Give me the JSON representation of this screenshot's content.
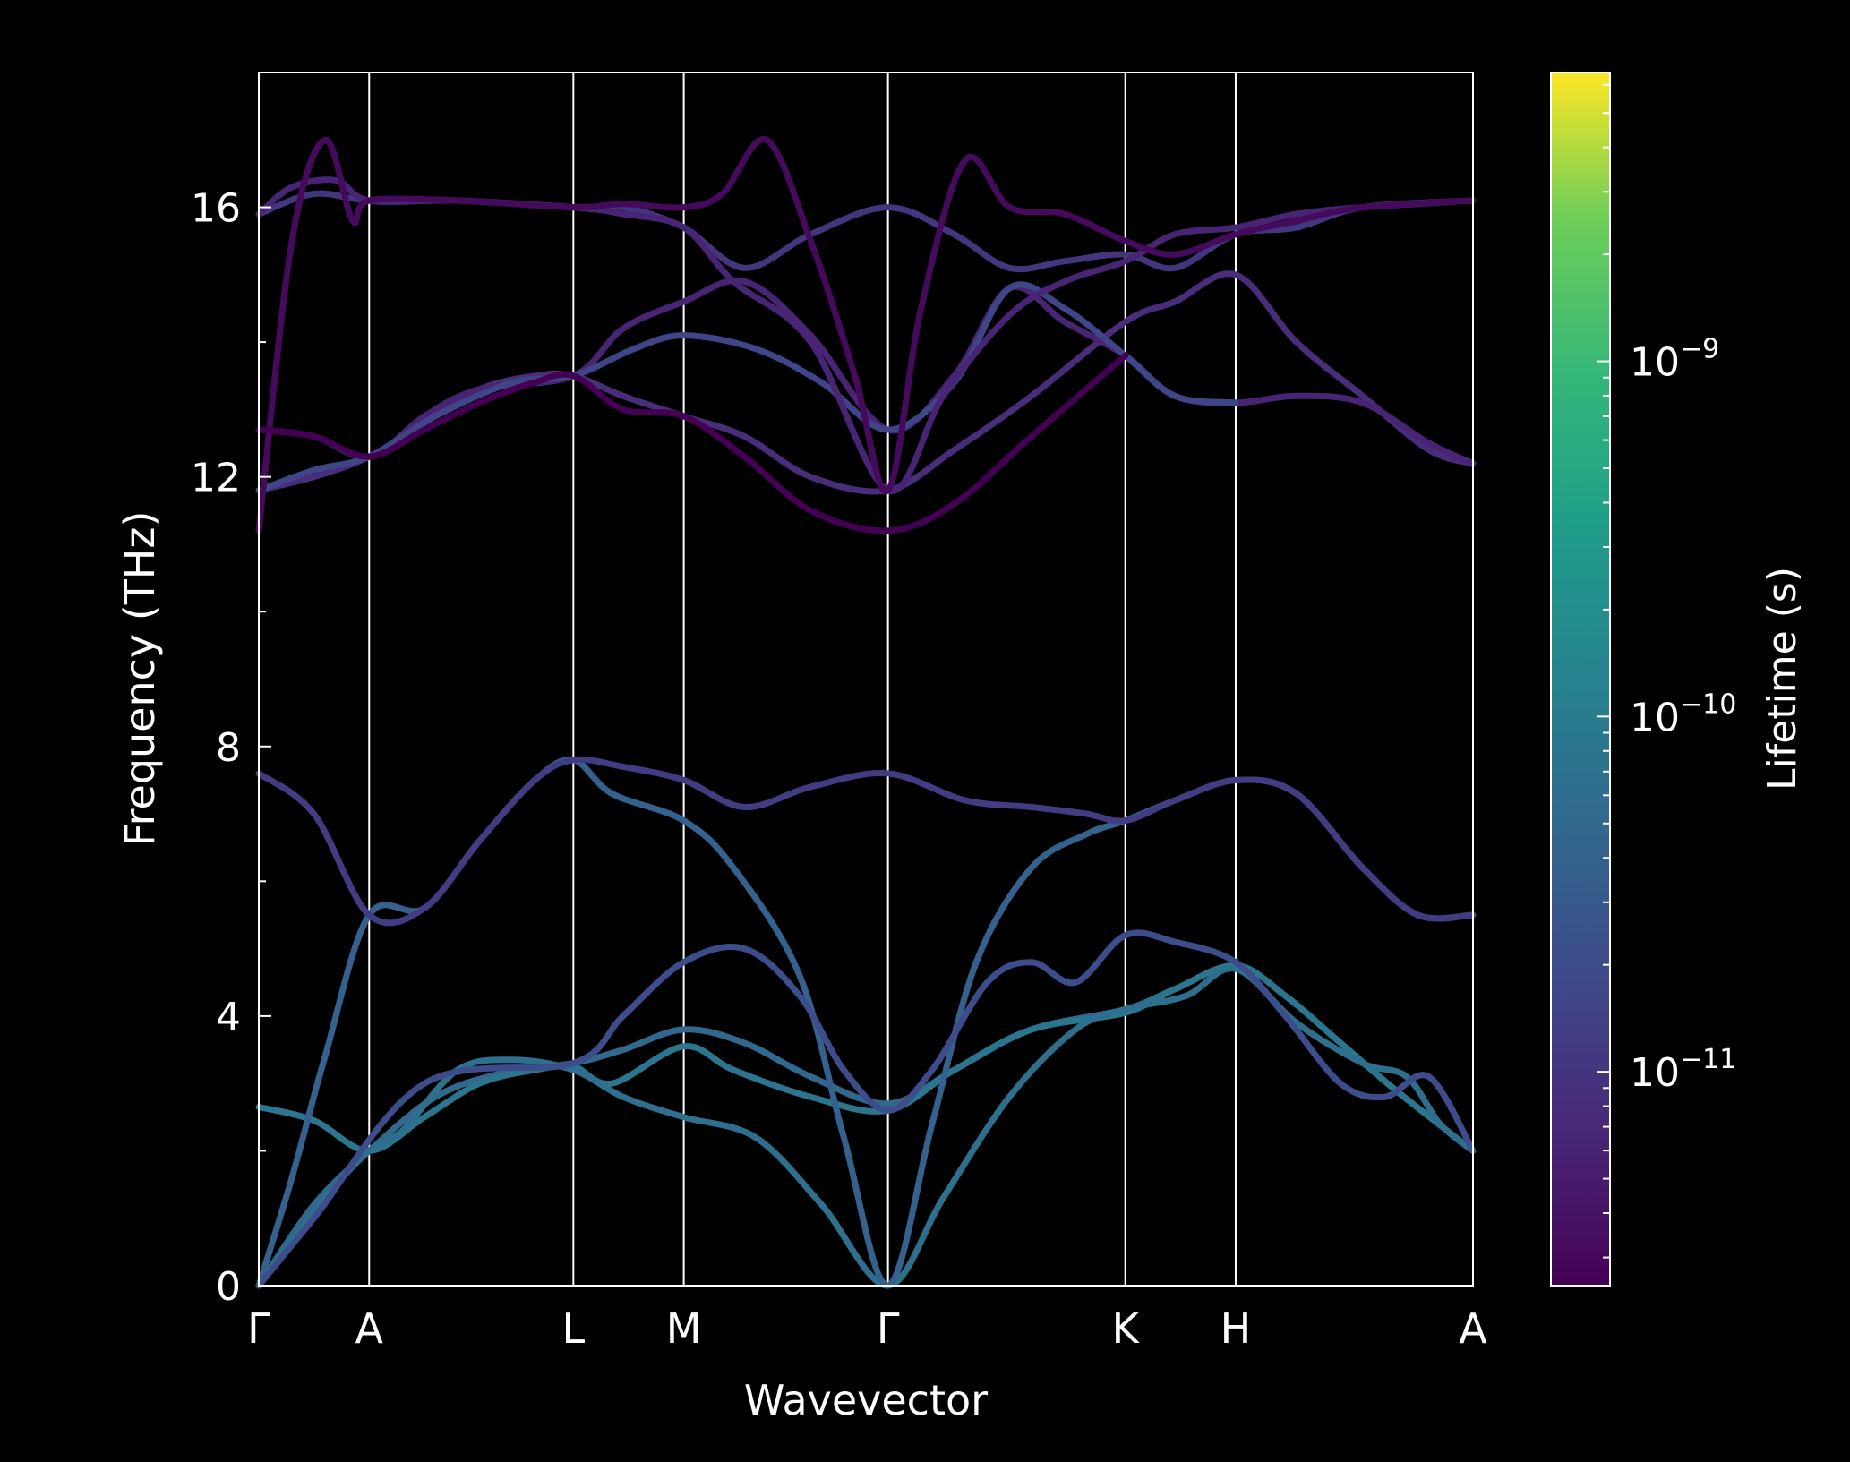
{
  "chart_data": {
    "type": "line",
    "title": "",
    "xlabel": "Wavevector",
    "ylabel": "Frequency (THz)",
    "ylim": [
      0,
      18
    ],
    "yticks": [
      0,
      4,
      8,
      12,
      16
    ],
    "ytick_labels": [
      "0",
      "4",
      "8",
      "12",
      "16"
    ],
    "xlim": [
      0,
      11
    ],
    "high_symmetry_points": [
      {
        "label": "Γ",
        "x": 0
      },
      {
        "label": "A",
        "x": 1
      },
      {
        "label": "L",
        "x": 2.85
      },
      {
        "label": "M",
        "x": 3.85
      },
      {
        "label": "Γ",
        "x": 5.7
      },
      {
        "label": "K",
        "x": 7.85
      },
      {
        "label": "H",
        "x": 8.85
      },
      {
        "label": "A",
        "x": 11
      }
    ],
    "grid": false,
    "colorbar": {
      "label": "Lifetime (s)",
      "scale": "log",
      "colormap": "viridis",
      "range": [
        2.5e-12,
        6.5e-09
      ],
      "ticks": [
        {
          "value": 1e-11,
          "label": "10",
          "exponent": "−11"
        },
        {
          "value": 1e-10,
          "label": "10",
          "exponent": "−10"
        },
        {
          "value": 1e-09,
          "label": "10",
          "exponent": "−9"
        }
      ]
    },
    "series": [
      {
        "lifetime_exp": -10.3,
        "points": [
          [
            0,
            0
          ],
          [
            0.5,
            1.2
          ],
          [
            1,
            2.0
          ],
          [
            1.6,
            2.8
          ],
          [
            2.2,
            3.15
          ],
          [
            2.85,
            3.3
          ],
          [
            3.3,
            3.5
          ],
          [
            3.85,
            3.8
          ],
          [
            4.4,
            3.6
          ],
          [
            5.0,
            3.1
          ],
          [
            5.7,
            2.7
          ],
          [
            6.3,
            3.2
          ],
          [
            7.0,
            3.8
          ],
          [
            7.85,
            4.1
          ],
          [
            8.3,
            4.4
          ],
          [
            8.85,
            4.75
          ],
          [
            9.3,
            4.3
          ],
          [
            9.8,
            3.6
          ],
          [
            10.3,
            2.9
          ],
          [
            11,
            2.0
          ]
        ]
      },
      {
        "lifetime_exp": -10.1,
        "points": [
          [
            0,
            2.65
          ],
          [
            0.5,
            2.45
          ],
          [
            1,
            2.0
          ],
          [
            1.5,
            2.5
          ],
          [
            2.0,
            3.0
          ],
          [
            2.5,
            3.2
          ],
          [
            2.85,
            3.25
          ],
          [
            3.2,
            3.0
          ],
          [
            3.85,
            3.55
          ],
          [
            4.3,
            3.2
          ],
          [
            5.0,
            2.8
          ],
          [
            5.7,
            2.6
          ],
          [
            6.3,
            3.2
          ],
          [
            7.0,
            3.8
          ],
          [
            7.85,
            4.05
          ],
          [
            8.3,
            4.4
          ],
          [
            8.85,
            4.75
          ],
          [
            9.3,
            4.3
          ],
          [
            9.8,
            3.6
          ],
          [
            10.3,
            2.9
          ],
          [
            11,
            2.0
          ]
        ]
      },
      {
        "lifetime_exp": -10.2,
        "points": [
          [
            0,
            0
          ],
          [
            0.6,
            1.3
          ],
          [
            1,
            2.0
          ],
          [
            1.3,
            2.3
          ],
          [
            1.8,
            3.2
          ],
          [
            2.3,
            3.35
          ],
          [
            2.85,
            3.2
          ],
          [
            3.3,
            2.8
          ],
          [
            3.85,
            2.5
          ],
          [
            4.5,
            2.2
          ],
          [
            5.1,
            1.2
          ],
          [
            5.7,
            0
          ],
          [
            6.2,
            1.3
          ],
          [
            6.8,
            2.8
          ],
          [
            7.4,
            3.8
          ],
          [
            7.85,
            4.1
          ],
          [
            8.4,
            4.3
          ],
          [
            8.85,
            4.7
          ],
          [
            9.4,
            3.9
          ],
          [
            10.0,
            3.3
          ],
          [
            10.4,
            3.1
          ],
          [
            10.7,
            2.4
          ],
          [
            11,
            2.0
          ]
        ]
      },
      {
        "lifetime_exp": -10.4,
        "points": [
          [
            0,
            0
          ],
          [
            0.3,
            1.6
          ],
          [
            0.6,
            3.4
          ],
          [
            1,
            5.5
          ],
          [
            1.5,
            5.6
          ],
          [
            2.0,
            6.6
          ],
          [
            2.5,
            7.5
          ],
          [
            2.85,
            7.8
          ],
          [
            3.2,
            7.3
          ],
          [
            3.85,
            6.9
          ],
          [
            4.3,
            6.2
          ],
          [
            4.9,
            4.6
          ],
          [
            5.3,
            2.2
          ],
          [
            5.7,
            0
          ],
          [
            6.1,
            2.4
          ],
          [
            6.5,
            4.8
          ],
          [
            7.0,
            6.2
          ],
          [
            7.5,
            6.7
          ],
          [
            7.85,
            6.9
          ],
          [
            8.3,
            7.2
          ],
          [
            8.85,
            7.5
          ],
          [
            9.4,
            7.3
          ],
          [
            10.0,
            6.2
          ],
          [
            10.5,
            5.5
          ],
          [
            11,
            5.5
          ]
        ]
      },
      {
        "lifetime_exp": -10.7,
        "points": [
          [
            0,
            0
          ],
          [
            0.5,
            1.0
          ],
          [
            1.5,
            3.0
          ],
          [
            2.85,
            3.3
          ],
          [
            3.3,
            4.0
          ],
          [
            3.85,
            4.8
          ],
          [
            4.4,
            5.0
          ],
          [
            4.9,
            4.3
          ],
          [
            5.3,
            3.2
          ],
          [
            5.7,
            2.6
          ],
          [
            6.1,
            3.2
          ],
          [
            6.6,
            4.5
          ],
          [
            7.0,
            4.8
          ],
          [
            7.4,
            4.5
          ],
          [
            7.85,
            5.2
          ],
          [
            8.3,
            5.1
          ],
          [
            8.85,
            4.8
          ],
          [
            9.3,
            4.0
          ],
          [
            9.8,
            3.0
          ],
          [
            10.2,
            2.8
          ],
          [
            10.6,
            3.1
          ],
          [
            11,
            2.0
          ]
        ]
      },
      {
        "lifetime_exp": -10.9,
        "points": [
          [
            0,
            7.6
          ],
          [
            0.5,
            7.0
          ],
          [
            1,
            5.5
          ],
          [
            1.5,
            5.6
          ],
          [
            2.0,
            6.6
          ],
          [
            2.5,
            7.5
          ],
          [
            2.85,
            7.8
          ],
          [
            3.3,
            7.7
          ],
          [
            3.85,
            7.5
          ],
          [
            4.4,
            7.1
          ],
          [
            5.0,
            7.4
          ],
          [
            5.7,
            7.6
          ],
          [
            6.4,
            7.2
          ],
          [
            7.0,
            7.1
          ],
          [
            7.5,
            7.0
          ],
          [
            7.85,
            6.9
          ],
          [
            8.3,
            7.2
          ],
          [
            8.85,
            7.5
          ],
          [
            9.4,
            7.3
          ],
          [
            10.0,
            6.2
          ],
          [
            10.5,
            5.5
          ],
          [
            11,
            5.5
          ]
        ]
      },
      {
        "lifetime_exp": -11.1,
        "points": [
          [
            0,
            11.8
          ],
          [
            0.5,
            12.0
          ],
          [
            1,
            12.3
          ],
          [
            1.5,
            12.8
          ],
          [
            2.0,
            13.3
          ],
          [
            2.5,
            13.5
          ],
          [
            2.85,
            13.5
          ],
          [
            3.3,
            13.2
          ],
          [
            3.85,
            12.9
          ],
          [
            4.4,
            12.6
          ],
          [
            5.0,
            12.0
          ],
          [
            5.7,
            11.8
          ],
          [
            6.3,
            12.4
          ],
          [
            7.0,
            13.2
          ],
          [
            7.85,
            14.3
          ],
          [
            8.3,
            14.6
          ],
          [
            8.85,
            15.0
          ],
          [
            9.4,
            14.0
          ],
          [
            10.0,
            13.2
          ],
          [
            10.6,
            12.4
          ],
          [
            11,
            12.2
          ]
        ]
      },
      {
        "lifetime_exp": -11.2,
        "points": [
          [
            0,
            12.7
          ],
          [
            0.5,
            12.6
          ],
          [
            1,
            12.3
          ],
          [
            1.5,
            12.9
          ],
          [
            2.0,
            13.3
          ],
          [
            2.85,
            13.5
          ],
          [
            3.3,
            14.2
          ],
          [
            3.85,
            14.6
          ],
          [
            4.4,
            14.9
          ],
          [
            5.0,
            14.1
          ],
          [
            5.7,
            12.7
          ],
          [
            6.3,
            13.5
          ],
          [
            6.8,
            14.8
          ],
          [
            7.3,
            14.3
          ],
          [
            7.85,
            13.8
          ],
          [
            8.3,
            13.2
          ],
          [
            8.85,
            13.1
          ],
          [
            9.4,
            13.2
          ],
          [
            10.0,
            13.1
          ],
          [
            10.6,
            12.5
          ],
          [
            11,
            12.2
          ]
        ]
      },
      {
        "lifetime_exp": -10.8,
        "points": [
          [
            0,
            11.8
          ],
          [
            0.5,
            12.1
          ],
          [
            1,
            12.3
          ],
          [
            1.6,
            12.9
          ],
          [
            2.3,
            13.4
          ],
          [
            2.85,
            13.5
          ],
          [
            3.4,
            13.9
          ],
          [
            3.85,
            14.1
          ],
          [
            4.5,
            13.9
          ],
          [
            5.1,
            13.4
          ],
          [
            5.7,
            12.7
          ],
          [
            6.3,
            13.4
          ],
          [
            6.8,
            14.8
          ],
          [
            7.3,
            14.5
          ],
          [
            7.85,
            13.8
          ],
          [
            8.3,
            13.2
          ],
          [
            8.85,
            13.1
          ]
        ]
      },
      {
        "lifetime_exp": -11.0,
        "points": [
          [
            0,
            15.9
          ],
          [
            0.5,
            16.2
          ],
          [
            1,
            16.1
          ],
          [
            1.8,
            16.1
          ],
          [
            2.85,
            16.0
          ],
          [
            3.3,
            16.0
          ],
          [
            3.85,
            15.7
          ],
          [
            4.4,
            15.1
          ],
          [
            5.0,
            15.6
          ],
          [
            5.7,
            16.0
          ],
          [
            6.3,
            15.6
          ],
          [
            6.8,
            15.1
          ],
          [
            7.3,
            15.2
          ],
          [
            7.85,
            15.3
          ],
          [
            8.3,
            15.1
          ],
          [
            8.85,
            15.6
          ],
          [
            9.4,
            15.7
          ],
          [
            10.0,
            16.0
          ],
          [
            11,
            16.1
          ]
        ]
      },
      {
        "lifetime_exp": -11.2,
        "points": [
          [
            0,
            15.9
          ],
          [
            0.3,
            16.3
          ],
          [
            0.7,
            16.4
          ],
          [
            1,
            16.1
          ],
          [
            1.8,
            16.1
          ],
          [
            2.85,
            16.0
          ],
          [
            3.3,
            15.9
          ],
          [
            3.85,
            15.7
          ],
          [
            4.3,
            14.9
          ],
          [
            5.0,
            14.0
          ],
          [
            5.7,
            11.8
          ],
          [
            6.2,
            13.2
          ],
          [
            6.8,
            14.4
          ],
          [
            7.3,
            14.9
          ],
          [
            7.85,
            15.2
          ],
          [
            8.3,
            15.6
          ],
          [
            8.85,
            15.7
          ],
          [
            9.4,
            15.9
          ],
          [
            10.0,
            16.0
          ],
          [
            11,
            16.1
          ]
        ]
      },
      {
        "lifetime_exp": -11.5,
        "points": [
          [
            0,
            11.2
          ],
          [
            0.3,
            15.5
          ],
          [
            0.6,
            17.0
          ],
          [
            0.85,
            15.8
          ],
          [
            1,
            16.1
          ],
          [
            1.8,
            16.1
          ],
          [
            2.85,
            16.0
          ],
          [
            3.3,
            16.05
          ],
          [
            3.85,
            16.0
          ],
          [
            4.2,
            16.2
          ],
          [
            4.6,
            17.0
          ],
          [
            5.0,
            15.5
          ],
          [
            5.4,
            13.5
          ],
          [
            5.7,
            11.8
          ],
          [
            6.0,
            14.5
          ],
          [
            6.4,
            16.7
          ],
          [
            6.8,
            16.0
          ],
          [
            7.3,
            15.9
          ],
          [
            7.85,
            15.5
          ],
          [
            8.3,
            15.3
          ],
          [
            8.85,
            15.6
          ],
          [
            9.4,
            15.8
          ],
          [
            10.0,
            16.0
          ],
          [
            11,
            16.1
          ]
        ]
      },
      {
        "lifetime_exp": -11.6,
        "points": [
          [
            0,
            12.7
          ],
          [
            0.5,
            12.6
          ],
          [
            1,
            12.3
          ],
          [
            1.5,
            12.7
          ],
          [
            2.0,
            13.1
          ],
          [
            2.5,
            13.4
          ],
          [
            2.85,
            13.5
          ],
          [
            3.3,
            13.0
          ],
          [
            3.85,
            12.9
          ],
          [
            4.4,
            12.3
          ],
          [
            5.0,
            11.5
          ],
          [
            5.7,
            11.2
          ],
          [
            6.3,
            11.6
          ],
          [
            7.0,
            12.6
          ],
          [
            7.85,
            13.8
          ]
        ]
      }
    ]
  }
}
